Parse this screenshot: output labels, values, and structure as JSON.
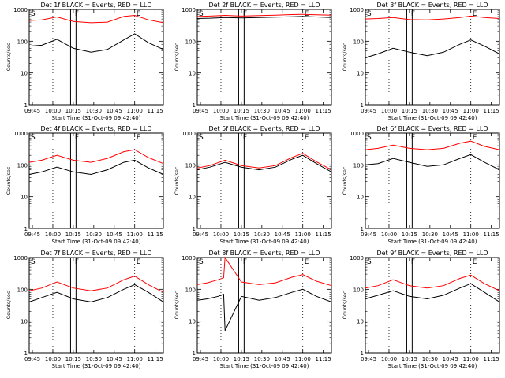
{
  "chart_data": [
    {
      "type": "line",
      "title": "Det 1f BLACK = Events, RED = LLD",
      "ylabel": "Counts/sec",
      "xlabel": "Start Time (31-Oct-09 09:42:40)",
      "yscale": "log",
      "ylim": [
        1,
        1000
      ],
      "xlim": [
        "09:42:40",
        "11:21:00"
      ],
      "x_ticks": [
        "09:45",
        "10:00",
        "10:15",
        "10:30",
        "10:45",
        "11:00",
        "11:15"
      ],
      "y_ticks": [
        "1",
        "10",
        "100",
        "1000"
      ],
      "markers": [
        "S",
        "F",
        "E"
      ],
      "series": [
        {
          "color": "#000000",
          "x": [
            "09:42:40",
            "09:52",
            "10:03",
            "10:15",
            "10:28",
            "10:40",
            "10:52",
            "11:00",
            "11:10",
            "11:21"
          ],
          "y": [
            70,
            75,
            115,
            60,
            45,
            55,
            110,
            170,
            90,
            55
          ]
        },
        {
          "color": "#ff0000",
          "x": [
            "09:42:40",
            "09:52",
            "10:03",
            "10:15",
            "10:28",
            "10:40",
            "10:52",
            "11:00",
            "11:10",
            "11:21"
          ],
          "y": [
            450,
            470,
            580,
            420,
            380,
            400,
            600,
            650,
            470,
            380
          ]
        }
      ]
    },
    {
      "type": "line",
      "title": "Det 2f BLACK = Events, RED = LLD",
      "ylabel": "Counts/sec",
      "xlabel": "Start Time (31-Oct-09 09:42:40)",
      "yscale": "log",
      "ylim": [
        1,
        1000
      ],
      "xlim": [
        "09:42:40",
        "11:21:00"
      ],
      "x_ticks": [
        "09:45",
        "10:00",
        "10:15",
        "10:30",
        "10:45",
        "11:00",
        "11:15"
      ],
      "y_ticks": [
        "1",
        "10",
        "100",
        "1000"
      ],
      "markers": [
        "S",
        "F",
        "E"
      ],
      "series": [
        {
          "color": "#000000",
          "x": [
            "09:42:40",
            "09:52",
            "10:03",
            "10:15",
            "10:28",
            "10:40",
            "10:52",
            "11:00",
            "11:10",
            "11:21"
          ],
          "y": [
            520,
            530,
            560,
            540,
            560,
            570,
            590,
            600,
            580,
            560
          ]
        },
        {
          "color": "#ff0000",
          "x": [
            "09:42:40",
            "09:52",
            "10:03",
            "10:15",
            "10:28",
            "10:40",
            "10:52",
            "11:00",
            "11:10",
            "11:21"
          ],
          "y": [
            600,
            620,
            650,
            620,
            640,
            660,
            690,
            700,
            680,
            660
          ]
        }
      ]
    },
    {
      "type": "line",
      "title": "Det 3f BLACK = Events, RED = LLD",
      "ylabel": "Counts/sec",
      "xlabel": "Start Time (31-Oct-09 09:42:40)",
      "yscale": "log",
      "ylim": [
        1,
        1000
      ],
      "xlim": [
        "09:42:40",
        "11:21:00"
      ],
      "x_ticks": [
        "09:45",
        "10:00",
        "10:15",
        "10:30",
        "10:45",
        "11:00",
        "11:15"
      ],
      "y_ticks": [
        "1",
        "10",
        "100",
        "1000"
      ],
      "markers": [
        "S",
        "F",
        "E"
      ],
      "series": [
        {
          "color": "#000000",
          "x": [
            "09:42:40",
            "09:52",
            "10:03",
            "10:15",
            "10:28",
            "10:40",
            "10:52",
            "11:00",
            "11:10",
            "11:21"
          ],
          "y": [
            30,
            40,
            60,
            45,
            35,
            45,
            80,
            110,
            70,
            40
          ]
        },
        {
          "color": "#ff0000",
          "x": [
            "09:42:40",
            "09:52",
            "10:03",
            "10:15",
            "10:28",
            "10:40",
            "10:52",
            "11:00",
            "11:10",
            "11:21"
          ],
          "y": [
            500,
            520,
            560,
            480,
            470,
            500,
            560,
            620,
            560,
            520
          ]
        }
      ]
    },
    {
      "type": "line",
      "title": "Det 4f BLACK = Events, RED = LLD",
      "ylabel": "Counts/sec",
      "xlabel": "Start Time (31-Oct-09 09:42:40)",
      "yscale": "log",
      "ylim": [
        1,
        1000
      ],
      "xlim": [
        "09:42:40",
        "11:21:00"
      ],
      "x_ticks": [
        "09:45",
        "10:00",
        "10:15",
        "10:30",
        "10:45",
        "11:00",
        "11:15"
      ],
      "y_ticks": [
        "1",
        "10",
        "100",
        "1000"
      ],
      "markers": [
        "S",
        "F",
        "E"
      ],
      "series": [
        {
          "color": "#000000",
          "x": [
            "09:42:40",
            "09:52",
            "10:03",
            "10:15",
            "10:28",
            "10:40",
            "10:52",
            "11:00",
            "11:10",
            "11:21"
          ],
          "y": [
            50,
            60,
            85,
            60,
            50,
            70,
            120,
            140,
            80,
            50
          ]
        },
        {
          "color": "#ff0000",
          "x": [
            "09:42:40",
            "09:52",
            "10:03",
            "10:15",
            "10:28",
            "10:40",
            "10:52",
            "11:00",
            "11:10",
            "11:21"
          ],
          "y": [
            120,
            140,
            200,
            140,
            120,
            160,
            260,
            300,
            170,
            110
          ]
        }
      ]
    },
    {
      "type": "line",
      "title": "Det 5f BLACK = Events, RED = LLD",
      "ylabel": "Counts/sec",
      "xlabel": "Start Time (31-Oct-09 09:42:40)",
      "yscale": "log",
      "ylim": [
        1,
        1000
      ],
      "xlim": [
        "09:42:40",
        "11:21:00"
      ],
      "x_ticks": [
        "09:45",
        "10:00",
        "10:15",
        "10:30",
        "10:45",
        "11:00",
        "11:15"
      ],
      "y_ticks": [
        "1",
        "10",
        "100",
        "1000"
      ],
      "markers": [
        "S",
        "F",
        "E"
      ],
      "series": [
        {
          "color": "#000000",
          "x": [
            "09:42:40",
            "09:52",
            "10:03",
            "10:15",
            "10:28",
            "10:40",
            "10:52",
            "11:00",
            "11:10",
            "11:21"
          ],
          "y": [
            70,
            85,
            120,
            85,
            70,
            85,
            150,
            200,
            110,
            60
          ]
        },
        {
          "color": "#ff0000",
          "x": [
            "09:42:40",
            "09:52",
            "10:03",
            "10:15",
            "10:28",
            "10:40",
            "10:52",
            "11:00",
            "11:10",
            "11:21"
          ],
          "y": [
            80,
            95,
            140,
            95,
            80,
            95,
            170,
            230,
            125,
            70
          ]
        }
      ]
    },
    {
      "type": "line",
      "title": "Det 6f BLACK = Events, RED = LLD",
      "ylabel": "Counts/sec",
      "xlabel": "Start Time (31-Oct-09 09:42:40)",
      "yscale": "log",
      "ylim": [
        1,
        1000
      ],
      "xlim": [
        "09:42:40",
        "11:21:00"
      ],
      "x_ticks": [
        "09:45",
        "10:00",
        "10:15",
        "10:30",
        "10:45",
        "11:00",
        "11:15"
      ],
      "y_ticks": [
        "1",
        "10",
        "100",
        "1000"
      ],
      "markers": [
        "S",
        "F",
        "E"
      ],
      "series": [
        {
          "color": "#000000",
          "x": [
            "09:42:40",
            "09:52",
            "10:03",
            "10:15",
            "10:28",
            "10:40",
            "10:52",
            "11:00",
            "11:10",
            "11:21"
          ],
          "y": [
            100,
            110,
            160,
            120,
            90,
            100,
            160,
            210,
            120,
            70
          ]
        },
        {
          "color": "#ff0000",
          "x": [
            "09:42:40",
            "09:52",
            "10:03",
            "10:15",
            "10:28",
            "10:40",
            "10:52",
            "11:00",
            "11:10",
            "11:21"
          ],
          "y": [
            300,
            330,
            420,
            330,
            300,
            330,
            480,
            560,
            380,
            300
          ]
        }
      ]
    },
    {
      "type": "line",
      "title": "Det 7f BLACK = Events, RED = LLD",
      "ylabel": "Counts/sec",
      "xlabel": "Start Time (31-Oct-09 09:42:40)",
      "yscale": "log",
      "ylim": [
        1,
        1000
      ],
      "xlim": [
        "09:42:40",
        "11:21:00"
      ],
      "x_ticks": [
        "09:45",
        "10:00",
        "10:15",
        "10:30",
        "10:45",
        "11:00",
        "11:15"
      ],
      "y_ticks": [
        "1",
        "10",
        "100",
        "1000"
      ],
      "markers": [
        "S",
        "F",
        "E"
      ],
      "series": [
        {
          "color": "#000000",
          "x": [
            "09:42:40",
            "09:52",
            "10:03",
            "10:15",
            "10:28",
            "10:40",
            "10:52",
            "11:00",
            "11:10",
            "11:21"
          ],
          "y": [
            40,
            55,
            80,
            50,
            40,
            55,
            100,
            140,
            80,
            40
          ]
        },
        {
          "color": "#ff0000",
          "x": [
            "09:42:40",
            "09:52",
            "10:03",
            "10:15",
            "10:28",
            "10:40",
            "10:52",
            "11:00",
            "11:10",
            "11:21"
          ],
          "y": [
            90,
            110,
            170,
            110,
            90,
            110,
            200,
            260,
            140,
            80
          ]
        }
      ]
    },
    {
      "type": "line",
      "title": "Det 8f BLACK = Events, RED = LLD",
      "ylabel": "Counts/sec",
      "xlabel": "Start Time (31-Oct-09 09:42:40)",
      "yscale": "log",
      "ylim": [
        1,
        1000
      ],
      "xlim": [
        "09:42:40",
        "11:21:00"
      ],
      "x_ticks": [
        "09:45",
        "10:00",
        "10:15",
        "10:30",
        "10:45",
        "11:00",
        "11:15"
      ],
      "y_ticks": [
        "1",
        "10",
        "100",
        "1000"
      ],
      "markers": [
        "S",
        "F",
        "E"
      ],
      "series": [
        {
          "color": "#000000",
          "x": [
            "09:42:40",
            "09:50",
            "09:58",
            "10:02",
            "10:03",
            "10:15",
            "10:28",
            "10:40",
            "10:52",
            "11:00",
            "11:10",
            "11:21"
          ],
          "y": [
            45,
            50,
            60,
            70,
            5,
            60,
            45,
            55,
            80,
            100,
            60,
            40
          ]
        },
        {
          "color": "#ff0000",
          "x": [
            "09:42:40",
            "09:50",
            "09:58",
            "10:02",
            "10:03",
            "10:15",
            "10:28",
            "10:40",
            "10:52",
            "11:00",
            "11:10",
            "11:21"
          ],
          "y": [
            140,
            160,
            200,
            230,
            1000,
            170,
            140,
            160,
            240,
            290,
            180,
            130
          ]
        }
      ]
    },
    {
      "type": "line",
      "title": "Det 9f BLACK = Events, RED = LLD",
      "ylabel": "Counts/sec",
      "xlabel": "Start Time (31-Oct-09 09:42:40)",
      "yscale": "log",
      "ylim": [
        1,
        1000
      ],
      "xlim": [
        "09:42:40",
        "11:21:00"
      ],
      "x_ticks": [
        "09:45",
        "10:00",
        "10:15",
        "10:30",
        "10:45",
        "11:00",
        "11:15"
      ],
      "y_ticks": [
        "1",
        "10",
        "100",
        "1000"
      ],
      "markers": [
        "S",
        "F",
        "E"
      ],
      "series": [
        {
          "color": "#000000",
          "x": [
            "09:42:40",
            "09:52",
            "10:03",
            "10:15",
            "10:28",
            "10:40",
            "10:52",
            "11:00",
            "11:10",
            "11:21"
          ],
          "y": [
            50,
            65,
            90,
            60,
            50,
            65,
            110,
            150,
            80,
            40
          ]
        },
        {
          "color": "#ff0000",
          "x": [
            "09:42:40",
            "09:52",
            "10:03",
            "10:15",
            "10:28",
            "10:40",
            "10:52",
            "11:00",
            "11:10",
            "11:21"
          ],
          "y": [
            110,
            130,
            200,
            130,
            110,
            130,
            220,
            280,
            150,
            90
          ]
        }
      ]
    }
  ]
}
